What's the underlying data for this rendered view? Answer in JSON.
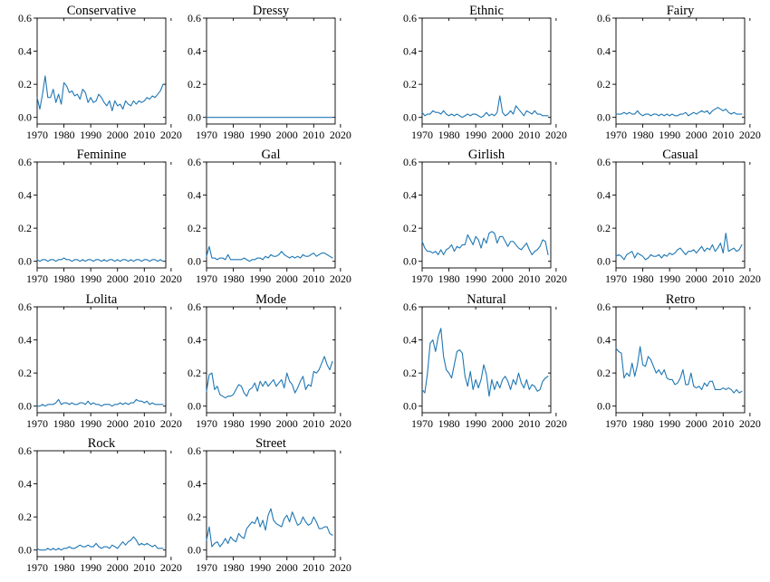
{
  "chart_data": {
    "type": "line",
    "layout": "small-multiples",
    "line_color": "#1f77b4",
    "xlim": [
      1970,
      2017
    ],
    "ylim": [
      -0.04,
      0.6
    ],
    "x_ticks": [
      1970,
      1980,
      1990,
      2000,
      2010,
      2020
    ],
    "x_tick_labels": [
      "1970",
      "1980",
      "1990",
      "2000",
      "2010",
      "2020"
    ],
    "y_ticks": [
      0.0,
      0.2,
      0.4,
      0.6
    ],
    "y_tick_labels": [
      "0.0",
      "0.2",
      "0.4",
      "0.6"
    ],
    "grid": false,
    "x_start": 1970,
    "x_end": 2017,
    "panels": [
      {
        "title": "Conservative",
        "values": [
          0.12,
          0.05,
          0.14,
          0.25,
          0.12,
          0.12,
          0.17,
          0.09,
          0.14,
          0.08,
          0.21,
          0.19,
          0.15,
          0.16,
          0.13,
          0.14,
          0.11,
          0.17,
          0.15,
          0.09,
          0.12,
          0.09,
          0.1,
          0.14,
          0.12,
          0.09,
          0.07,
          0.1,
          0.04,
          0.1,
          0.07,
          0.08,
          0.05,
          0.1,
          0.08,
          0.07,
          0.1,
          0.08,
          0.1,
          0.09,
          0.1,
          0.12,
          0.11,
          0.13,
          0.12,
          0.14,
          0.16,
          0.2
        ]
      },
      {
        "title": "Dressy",
        "values": [
          0.0,
          0.0,
          0.0,
          0.0,
          0.0,
          0.0,
          0.0,
          0.0,
          0.0,
          0.0,
          0.0,
          0.0,
          0.0,
          0.0,
          0.0,
          0.0,
          0.0,
          0.0,
          0.0,
          0.0,
          0.0,
          0.0,
          0.0,
          0.0,
          0.0,
          0.0,
          0.0,
          0.0,
          0.0,
          0.0,
          0.0,
          0.0,
          0.0,
          0.0,
          0.0,
          0.0,
          0.0,
          0.0,
          0.0,
          0.0,
          0.0,
          0.0,
          0.0,
          0.0,
          0.0,
          0.0,
          0.0,
          0.0
        ]
      },
      {
        "title": "Ethnic",
        "values": [
          0.03,
          0.01,
          0.02,
          0.02,
          0.04,
          0.03,
          0.03,
          0.02,
          0.04,
          0.02,
          0.01,
          0.02,
          0.01,
          0.02,
          0.01,
          0.0,
          0.01,
          0.02,
          0.01,
          0.02,
          0.02,
          0.01,
          0.0,
          0.01,
          0.03,
          0.01,
          0.02,
          0.01,
          0.03,
          0.13,
          0.03,
          0.01,
          0.02,
          0.04,
          0.02,
          0.07,
          0.05,
          0.03,
          0.01,
          0.04,
          0.03,
          0.02,
          0.04,
          0.02,
          0.02,
          0.01,
          0.01,
          0.01
        ]
      },
      {
        "title": "Fairy",
        "values": [
          0.02,
          0.02,
          0.02,
          0.03,
          0.02,
          0.03,
          0.02,
          0.02,
          0.04,
          0.02,
          0.01,
          0.02,
          0.02,
          0.01,
          0.02,
          0.02,
          0.01,
          0.02,
          0.01,
          0.02,
          0.01,
          0.02,
          0.01,
          0.01,
          0.02,
          0.02,
          0.03,
          0.01,
          0.02,
          0.03,
          0.02,
          0.03,
          0.04,
          0.03,
          0.04,
          0.02,
          0.04,
          0.05,
          0.06,
          0.05,
          0.04,
          0.05,
          0.03,
          0.02,
          0.03,
          0.02,
          0.02,
          0.02
        ]
      },
      {
        "title": "Feminine",
        "values": [
          0.01,
          0.0,
          0.01,
          0.01,
          0.0,
          0.01,
          0.01,
          0.0,
          0.01,
          0.01,
          0.02,
          0.01,
          0.01,
          0.0,
          0.01,
          0.01,
          0.0,
          0.01,
          0.0,
          0.01,
          0.01,
          0.0,
          0.01,
          0.01,
          0.0,
          0.01,
          0.0,
          0.01,
          0.01,
          0.0,
          0.01,
          0.0,
          0.01,
          0.01,
          0.0,
          0.01,
          0.0,
          0.01,
          0.01,
          0.0,
          0.01,
          0.01,
          0.0,
          0.01,
          0.01,
          0.0,
          0.01,
          0.0
        ]
      },
      {
        "title": "Gal",
        "values": [
          0.03,
          0.09,
          0.02,
          0.02,
          0.01,
          0.02,
          0.02,
          0.01,
          0.04,
          0.01,
          0.01,
          0.01,
          0.01,
          0.01,
          0.02,
          0.01,
          0.0,
          0.01,
          0.01,
          0.02,
          0.02,
          0.01,
          0.03,
          0.02,
          0.04,
          0.03,
          0.03,
          0.04,
          0.06,
          0.04,
          0.03,
          0.02,
          0.03,
          0.02,
          0.03,
          0.02,
          0.04,
          0.03,
          0.03,
          0.04,
          0.05,
          0.03,
          0.04,
          0.05,
          0.05,
          0.04,
          0.03,
          0.02
        ]
      },
      {
        "title": "Girlish",
        "values": [
          0.12,
          0.08,
          0.06,
          0.06,
          0.05,
          0.06,
          0.04,
          0.07,
          0.04,
          0.07,
          0.08,
          0.1,
          0.06,
          0.09,
          0.08,
          0.1,
          0.1,
          0.16,
          0.13,
          0.1,
          0.15,
          0.13,
          0.08,
          0.14,
          0.11,
          0.17,
          0.18,
          0.17,
          0.11,
          0.15,
          0.15,
          0.12,
          0.09,
          0.12,
          0.12,
          0.1,
          0.08,
          0.07,
          0.09,
          0.11,
          0.07,
          0.04,
          0.06,
          0.07,
          0.09,
          0.13,
          0.12,
          0.04
        ]
      },
      {
        "title": "Casual",
        "values": [
          0.03,
          0.04,
          0.03,
          0.01,
          0.04,
          0.05,
          0.06,
          0.02,
          0.05,
          0.04,
          0.03,
          0.01,
          0.02,
          0.04,
          0.03,
          0.03,
          0.04,
          0.02,
          0.04,
          0.03,
          0.05,
          0.04,
          0.05,
          0.07,
          0.08,
          0.06,
          0.04,
          0.06,
          0.06,
          0.07,
          0.05,
          0.07,
          0.09,
          0.06,
          0.08,
          0.07,
          0.1,
          0.06,
          0.08,
          0.11,
          0.05,
          0.17,
          0.06,
          0.07,
          0.08,
          0.06,
          0.07,
          0.1
        ]
      },
      {
        "title": "Lolita",
        "values": [
          0.0,
          0.0,
          0.01,
          0.0,
          0.01,
          0.01,
          0.01,
          0.02,
          0.04,
          0.01,
          0.02,
          0.02,
          0.01,
          0.02,
          0.01,
          0.01,
          0.02,
          0.02,
          0.01,
          0.03,
          0.01,
          0.02,
          0.01,
          0.01,
          0.0,
          0.01,
          0.01,
          0.01,
          0.0,
          0.01,
          0.01,
          0.02,
          0.01,
          0.02,
          0.01,
          0.02,
          0.02,
          0.04,
          0.03,
          0.03,
          0.02,
          0.03,
          0.01,
          0.02,
          0.01,
          0.01,
          0.01,
          0.01
        ]
      },
      {
        "title": "Mode",
        "values": [
          0.09,
          0.19,
          0.2,
          0.1,
          0.12,
          0.07,
          0.06,
          0.05,
          0.06,
          0.06,
          0.07,
          0.1,
          0.13,
          0.12,
          0.08,
          0.06,
          0.1,
          0.11,
          0.14,
          0.09,
          0.15,
          0.12,
          0.15,
          0.12,
          0.14,
          0.16,
          0.12,
          0.14,
          0.16,
          0.11,
          0.2,
          0.15,
          0.13,
          0.08,
          0.11,
          0.15,
          0.18,
          0.1,
          0.13,
          0.12,
          0.21,
          0.2,
          0.22,
          0.26,
          0.3,
          0.25,
          0.22,
          0.27
        ]
      },
      {
        "title": "Natural",
        "values": [
          0.1,
          0.08,
          0.2,
          0.38,
          0.4,
          0.33,
          0.42,
          0.47,
          0.3,
          0.22,
          0.2,
          0.17,
          0.25,
          0.33,
          0.34,
          0.32,
          0.18,
          0.12,
          0.21,
          0.1,
          0.16,
          0.11,
          0.16,
          0.25,
          0.19,
          0.06,
          0.16,
          0.1,
          0.15,
          0.11,
          0.16,
          0.18,
          0.15,
          0.1,
          0.16,
          0.13,
          0.2,
          0.14,
          0.11,
          0.16,
          0.1,
          0.13,
          0.12,
          0.09,
          0.1,
          0.15,
          0.17,
          0.18
        ]
      },
      {
        "title": "Retro",
        "values": [
          0.35,
          0.33,
          0.32,
          0.17,
          0.2,
          0.18,
          0.26,
          0.18,
          0.25,
          0.36,
          0.25,
          0.24,
          0.3,
          0.28,
          0.24,
          0.2,
          0.22,
          0.19,
          0.22,
          0.17,
          0.16,
          0.16,
          0.13,
          0.14,
          0.17,
          0.22,
          0.13,
          0.13,
          0.2,
          0.12,
          0.11,
          0.12,
          0.1,
          0.14,
          0.12,
          0.15,
          0.15,
          0.1,
          0.1,
          0.1,
          0.11,
          0.1,
          0.11,
          0.1,
          0.08,
          0.1,
          0.08,
          0.09
        ]
      },
      {
        "title": "Rock",
        "values": [
          0.01,
          0.0,
          0.0,
          0.0,
          0.01,
          0.0,
          0.01,
          0.0,
          0.01,
          0.0,
          0.01,
          0.01,
          0.02,
          0.01,
          0.01,
          0.02,
          0.03,
          0.02,
          0.02,
          0.03,
          0.02,
          0.02,
          0.04,
          0.02,
          0.01,
          0.02,
          0.02,
          0.01,
          0.03,
          0.02,
          0.01,
          0.03,
          0.05,
          0.03,
          0.05,
          0.06,
          0.08,
          0.06,
          0.03,
          0.04,
          0.03,
          0.04,
          0.03,
          0.02,
          0.03,
          0.01,
          0.01,
          0.01
        ]
      },
      {
        "title": "Street",
        "values": [
          0.06,
          0.14,
          0.02,
          0.04,
          0.05,
          0.02,
          0.04,
          0.07,
          0.04,
          0.08,
          0.06,
          0.05,
          0.1,
          0.08,
          0.07,
          0.13,
          0.15,
          0.17,
          0.16,
          0.2,
          0.14,
          0.18,
          0.12,
          0.21,
          0.25,
          0.18,
          0.16,
          0.15,
          0.14,
          0.19,
          0.21,
          0.17,
          0.23,
          0.19,
          0.15,
          0.16,
          0.2,
          0.17,
          0.15,
          0.16,
          0.2,
          0.17,
          0.13,
          0.13,
          0.14,
          0.14,
          0.1,
          0.09
        ]
      }
    ]
  }
}
